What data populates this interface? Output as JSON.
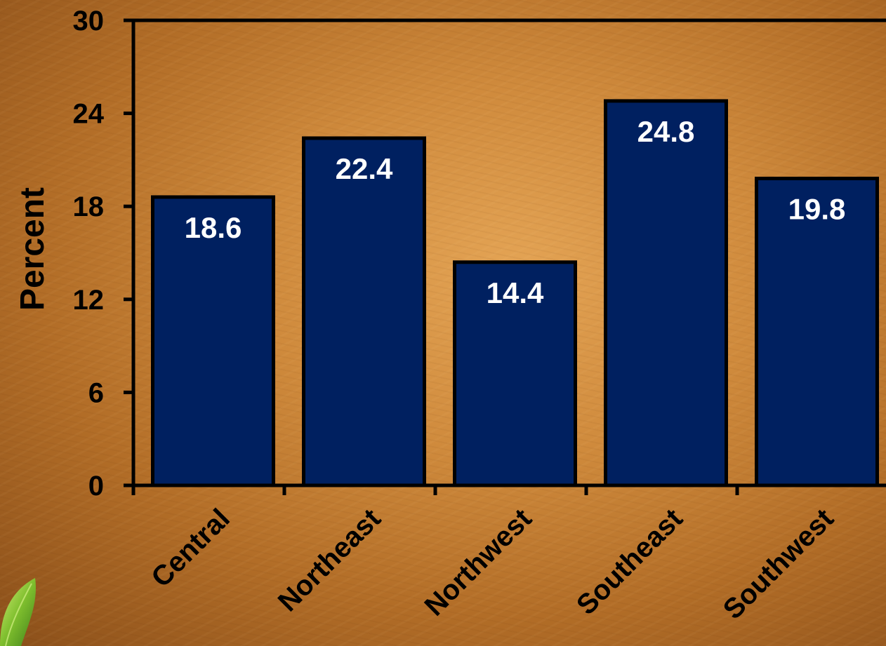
{
  "chart_data": {
    "type": "bar",
    "title": "",
    "xlabel": "",
    "ylabel": "Percent",
    "categories": [
      "Central",
      "Northeast",
      "Northwest",
      "Southeast",
      "Southwest"
    ],
    "values": [
      18.6,
      22.4,
      14.4,
      24.8,
      19.8
    ],
    "data_labels": [
      "18.6",
      "22.4",
      "14.4",
      "24.8",
      "19.8"
    ],
    "ylim": [
      0,
      30
    ],
    "yticks": [
      0,
      6,
      12,
      18,
      24,
      30
    ],
    "grid": false,
    "legend": "none",
    "bar_color": "#002060",
    "label_color": "#ffffff",
    "text_color": "#000000"
  },
  "decor": {
    "corner_icon": "leaf-icon"
  }
}
